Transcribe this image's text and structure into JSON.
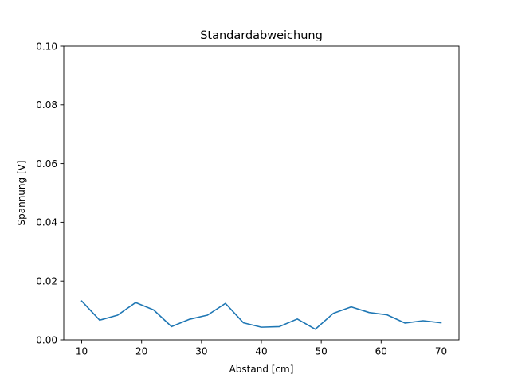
{
  "chart_data": {
    "type": "line",
    "title": "Standardabweichung",
    "xlabel": "Abstand [cm]",
    "ylabel": "Spannung [V]",
    "xlim": [
      7,
      73
    ],
    "ylim": [
      0,
      0.1
    ],
    "x_ticks": [
      10,
      20,
      30,
      40,
      50,
      60,
      70
    ],
    "x_tick_labels": [
      "10",
      "20",
      "30",
      "40",
      "50",
      "60",
      "70"
    ],
    "y_ticks": [
      0,
      0.02,
      0.04,
      0.06,
      0.08,
      0.1
    ],
    "y_tick_labels": [
      "0.00",
      "0.02",
      "0.04",
      "0.06",
      "0.08",
      "0.10"
    ],
    "grid": false,
    "series": [
      {
        "color": "#1f77b4",
        "x": [
          10,
          13,
          16,
          19,
          22,
          25,
          28,
          31,
          34,
          37,
          40,
          43,
          46,
          49,
          52,
          55,
          58,
          61,
          64,
          67,
          70
        ],
        "y": [
          0.0132,
          0.0067,
          0.0084,
          0.0127,
          0.0102,
          0.0045,
          0.007,
          0.0084,
          0.0124,
          0.0058,
          0.0043,
          0.0045,
          0.0071,
          0.0036,
          0.009,
          0.0112,
          0.0093,
          0.0085,
          0.0057,
          0.0065,
          0.0058
        ]
      }
    ]
  }
}
